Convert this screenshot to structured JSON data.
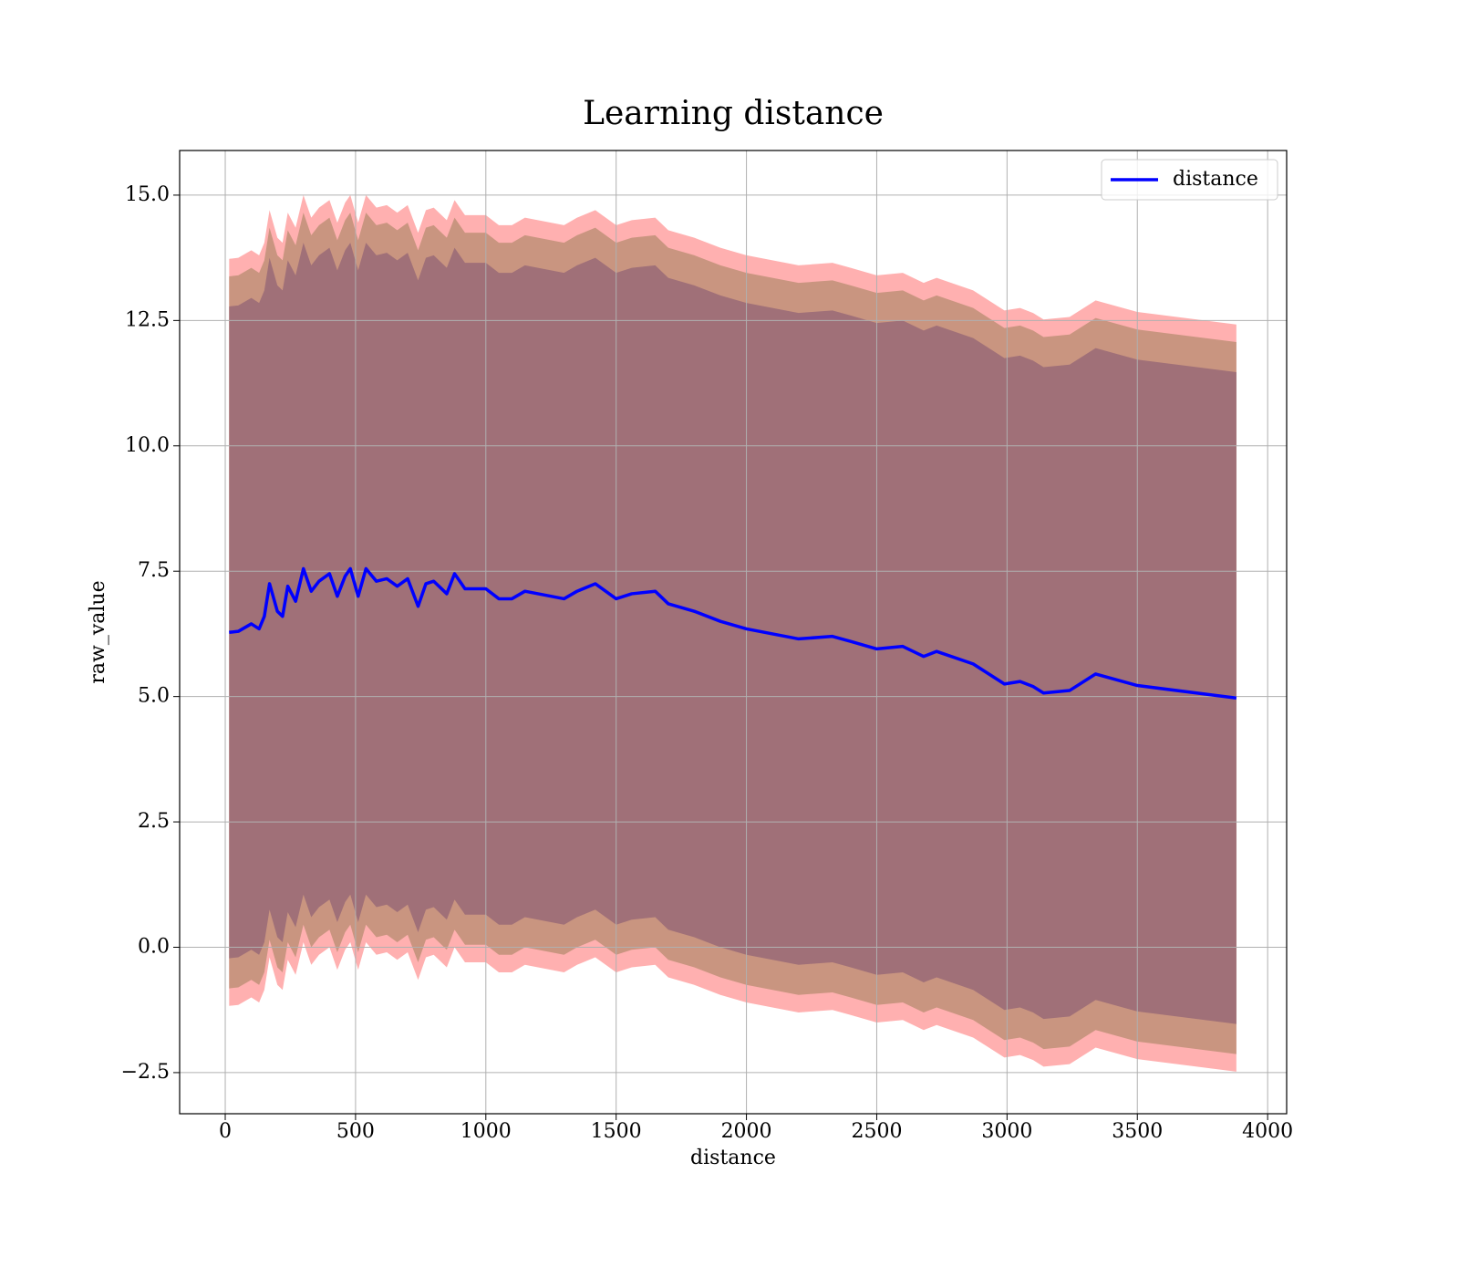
{
  "chart_data": {
    "type": "line",
    "title": "Learning distance",
    "xlabel": "distance",
    "ylabel": "raw_value",
    "xlim": [
      -175,
      4073
    ],
    "ylim": [
      -3.32,
      15.89
    ],
    "xticks": [
      0,
      500,
      1000,
      1500,
      2000,
      2500,
      3000,
      3500,
      4000
    ],
    "yticks": [
      {
        "value": -2.5,
        "label": "−2.5"
      },
      {
        "value": 0,
        "label": "0.0"
      },
      2.5,
      {
        "value": 5,
        "label": "5.0"
      },
      7.5,
      {
        "value": 10,
        "label": "10.0"
      },
      12.5,
      {
        "value": 15,
        "label": "15.0"
      }
    ],
    "grid": true,
    "legend": "upper right",
    "x": [
      15,
      50,
      100,
      130,
      150,
      170,
      200,
      220,
      240,
      270,
      300,
      330,
      360,
      400,
      430,
      460,
      480,
      510,
      540,
      580,
      620,
      660,
      700,
      740,
      770,
      800,
      850,
      880,
      920,
      1000,
      1050,
      1100,
      1150,
      1200,
      1300,
      1350,
      1420,
      1500,
      1560,
      1650,
      1700,
      1800,
      1900,
      2000,
      2100,
      2200,
      2330,
      2400,
      2500,
      2600,
      2680,
      2730,
      2870,
      2990,
      3050,
      3100,
      3140,
      3240,
      3340,
      3500,
      3880
    ],
    "series": [
      {
        "name": "distance",
        "color": "#0000ff",
        "values": [
          6.28,
          6.3,
          6.45,
          6.35,
          6.6,
          7.25,
          6.7,
          6.6,
          7.2,
          6.9,
          7.55,
          7.1,
          7.3,
          7.45,
          7.0,
          7.4,
          7.55,
          7.0,
          7.55,
          7.3,
          7.35,
          7.2,
          7.35,
          6.8,
          7.25,
          7.3,
          7.05,
          7.45,
          7.15,
          7.15,
          6.95,
          6.95,
          7.1,
          7.05,
          6.95,
          7.1,
          7.25,
          6.95,
          7.05,
          7.1,
          6.85,
          6.7,
          6.5,
          6.35,
          6.25,
          6.15,
          6.2,
          6.1,
          5.95,
          6.0,
          5.8,
          5.9,
          5.65,
          5.25,
          5.3,
          5.2,
          5.07,
          5.12,
          5.45,
          5.22,
          4.97
        ]
      }
    ],
    "bands": [
      {
        "color": "#ffb0b0",
        "upper": [
          13.73,
          13.75,
          13.9,
          13.8,
          14.05,
          14.7,
          14.15,
          14.05,
          14.65,
          14.35,
          15.0,
          14.55,
          14.75,
          14.9,
          14.45,
          14.85,
          15.0,
          14.45,
          15.0,
          14.75,
          14.8,
          14.65,
          14.8,
          14.25,
          14.7,
          14.75,
          14.5,
          14.9,
          14.6,
          14.6,
          14.4,
          14.4,
          14.55,
          14.5,
          14.4,
          14.55,
          14.7,
          14.4,
          14.5,
          14.55,
          14.3,
          14.15,
          13.95,
          13.8,
          13.7,
          13.6,
          13.65,
          13.55,
          13.4,
          13.45,
          13.25,
          13.35,
          13.1,
          12.7,
          12.75,
          12.65,
          12.52,
          12.57,
          12.9,
          12.67,
          12.42
        ],
        "lower": [
          -1.17,
          -1.15,
          -1.0,
          -1.1,
          -0.85,
          -0.2,
          -0.75,
          -0.85,
          -0.25,
          -0.55,
          0.1,
          -0.35,
          -0.15,
          0,
          -0.45,
          -0.05,
          0.1,
          -0.45,
          0.1,
          -0.15,
          -0.1,
          -0.25,
          -0.1,
          -0.65,
          -0.2,
          -0.15,
          -0.4,
          0,
          -0.3,
          -0.3,
          -0.5,
          -0.5,
          -0.35,
          -0.4,
          -0.5,
          -0.35,
          -0.2,
          -0.5,
          -0.4,
          -0.35,
          -0.6,
          -0.75,
          -0.95,
          -1.1,
          -1.2,
          -1.3,
          -1.25,
          -1.35,
          -1.5,
          -1.45,
          -1.65,
          -1.55,
          -1.8,
          -2.2,
          -2.15,
          -2.25,
          -2.38,
          -2.33,
          -2.0,
          -2.23,
          -2.48
        ]
      },
      {
        "color": "#c99580",
        "upper": [
          13.38,
          13.4,
          13.55,
          13.45,
          13.7,
          14.35,
          13.8,
          13.7,
          14.3,
          14.0,
          14.65,
          14.2,
          14.4,
          14.55,
          14.1,
          14.5,
          14.65,
          14.1,
          14.65,
          14.4,
          14.45,
          14.3,
          14.45,
          13.9,
          14.35,
          14.4,
          14.15,
          14.55,
          14.25,
          14.25,
          14.05,
          14.05,
          14.2,
          14.15,
          14.05,
          14.2,
          14.35,
          14.05,
          14.15,
          14.2,
          13.95,
          13.8,
          13.6,
          13.45,
          13.35,
          13.25,
          13.3,
          13.2,
          13.05,
          13.1,
          12.9,
          13.0,
          12.75,
          12.35,
          12.4,
          12.3,
          12.17,
          12.22,
          12.55,
          12.32,
          12.07
        ],
        "lower": [
          -0.82,
          -0.8,
          -0.65,
          -0.75,
          -0.5,
          0.15,
          -0.4,
          -0.5,
          0.1,
          -0.2,
          0.45,
          0,
          0.2,
          0.35,
          -0.1,
          0.3,
          0.45,
          -0.1,
          0.45,
          0.2,
          0.25,
          0.1,
          0.25,
          -0.3,
          0.15,
          0.2,
          -0.05,
          0.35,
          0.05,
          0.05,
          -0.15,
          -0.15,
          0,
          -0.05,
          -0.15,
          0,
          0.15,
          -0.15,
          -0.05,
          0,
          -0.25,
          -0.4,
          -0.6,
          -0.75,
          -0.85,
          -0.95,
          -0.9,
          -1.0,
          -1.15,
          -1.1,
          -1.3,
          -1.2,
          -1.45,
          -1.85,
          -1.8,
          -1.9,
          -2.03,
          -1.98,
          -1.65,
          -1.88,
          -2.13
        ]
      },
      {
        "color": "#a07078",
        "upper": [
          12.78,
          12.8,
          12.95,
          12.85,
          13.1,
          13.75,
          13.2,
          13.1,
          13.7,
          13.4,
          14.05,
          13.6,
          13.8,
          13.95,
          13.5,
          13.9,
          14.05,
          13.5,
          14.05,
          13.8,
          13.85,
          13.7,
          13.85,
          13.3,
          13.75,
          13.8,
          13.55,
          13.95,
          13.65,
          13.65,
          13.45,
          13.45,
          13.6,
          13.55,
          13.45,
          13.6,
          13.75,
          13.45,
          13.55,
          13.6,
          13.35,
          13.2,
          13.0,
          12.85,
          12.75,
          12.65,
          12.7,
          12.6,
          12.45,
          12.5,
          12.3,
          12.4,
          12.15,
          11.75,
          11.8,
          11.7,
          11.57,
          11.62,
          11.95,
          11.72,
          11.47
        ],
        "lower": [
          -0.22,
          -0.2,
          -0.05,
          -0.15,
          0.1,
          0.75,
          0.2,
          0.1,
          0.7,
          0.4,
          1.05,
          0.6,
          0.8,
          0.95,
          0.5,
          0.9,
          1.05,
          0.5,
          1.05,
          0.8,
          0.85,
          0.7,
          0.85,
          0.3,
          0.75,
          0.8,
          0.55,
          0.95,
          0.65,
          0.65,
          0.45,
          0.45,
          0.6,
          0.55,
          0.45,
          0.6,
          0.75,
          0.45,
          0.55,
          0.6,
          0.35,
          0.2,
          0,
          -0.15,
          -0.25,
          -0.35,
          -0.3,
          -0.4,
          -0.55,
          -0.5,
          -0.7,
          -0.6,
          -0.85,
          -1.25,
          -1.2,
          -1.3,
          -1.43,
          -1.38,
          -1.05,
          -1.28,
          -1.53
        ]
      }
    ]
  }
}
